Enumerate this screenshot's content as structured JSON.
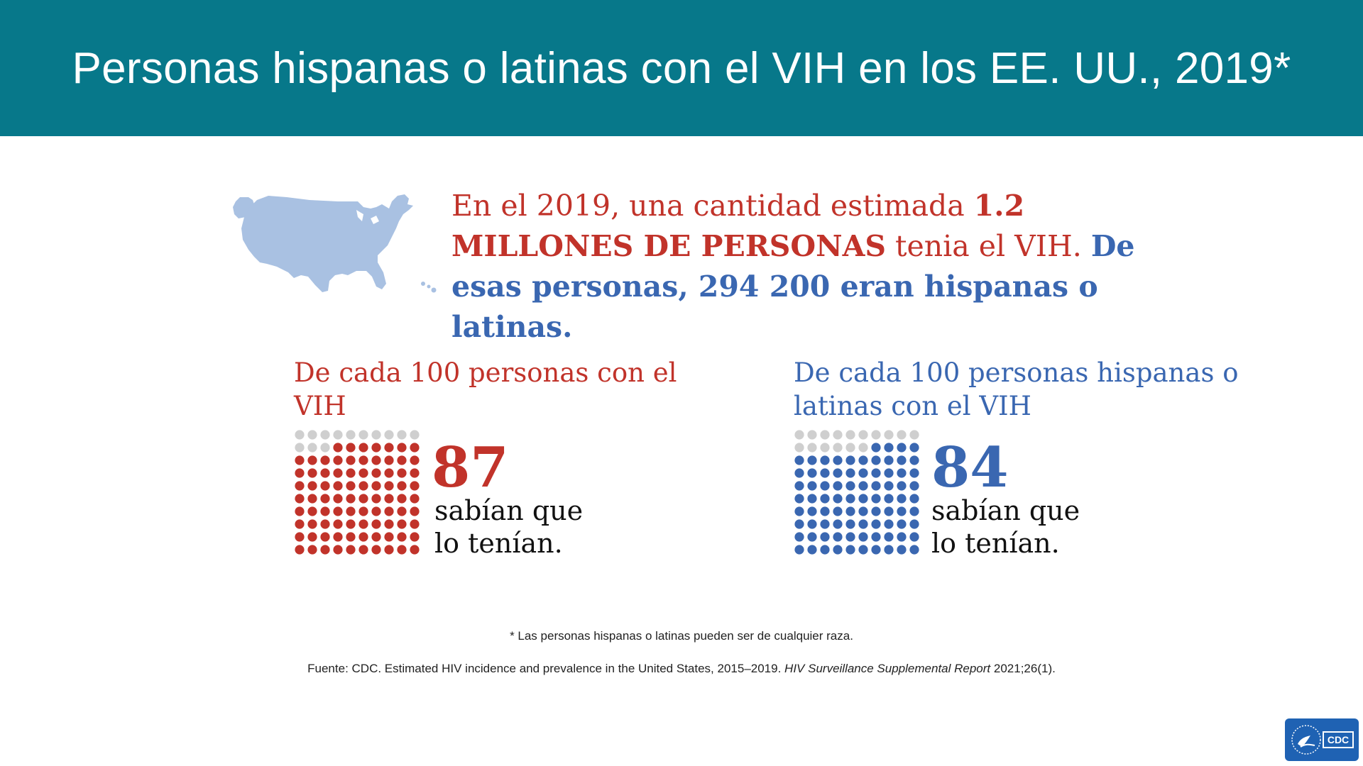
{
  "header": {
    "title": "Personas hispanas o latinas con el VIH en los EE. UU., 2019*",
    "background": "#07788a"
  },
  "intro": {
    "part1": "En el 2019, una cantidad estimada ",
    "highlight1": "1.2 MILLONES DE PERSONAS",
    "part2": " tenia el VIH.  ",
    "highlight2": "De esas personas, 294 200 eran hispanas o latinas."
  },
  "panels": [
    {
      "title": "De cada 100 personas con el VIH",
      "value": "87",
      "value_num": 87,
      "caption_line1": "sabían que",
      "caption_line2": "lo tenían.",
      "color": "#c1332a"
    },
    {
      "title": "De cada 100 personas hispanas o latinas con el VIH",
      "value": "84",
      "value_num": 84,
      "caption_line1": "sabían que",
      "caption_line2": "lo tenían.",
      "color": "#3a67b1"
    }
  ],
  "dot_inactive_color": "#cfcfcf",
  "map_color": "#a9c1e2",
  "footnote": "* Las personas hispanas o latinas pueden ser de cualquier raza.",
  "source": {
    "prefix": "Fuente: CDC. Estimated HIV incidence and prevalence in the United States, 2015–2019. ",
    "italic": "HIV Surveillance Supplemental Report",
    "suffix": " 2021;26(1)."
  },
  "logo": {
    "text": "CDC"
  }
}
